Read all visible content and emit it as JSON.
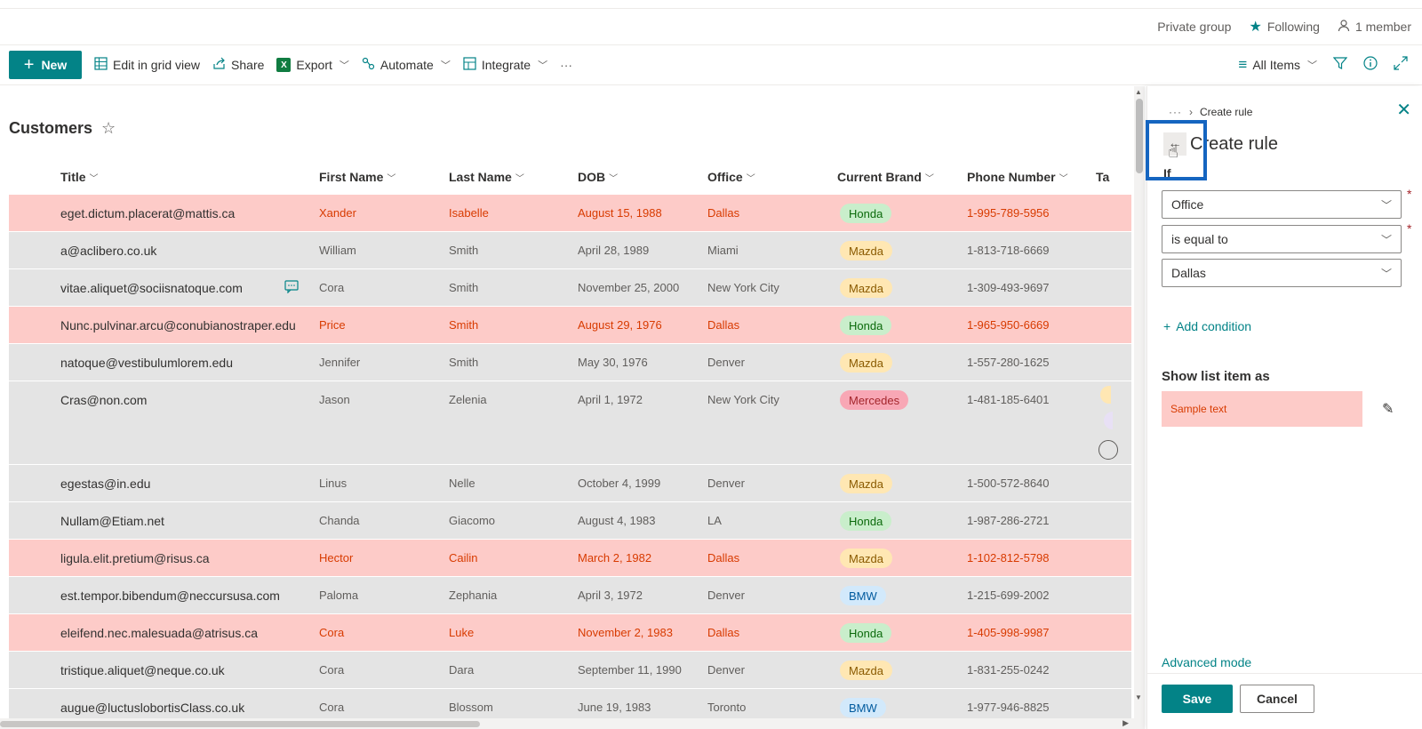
{
  "group": {
    "privacy": "Private group",
    "following": "Following",
    "members": "1 member"
  },
  "toolbar": {
    "new_label": "New",
    "edit_grid": "Edit in grid view",
    "share": "Share",
    "export": "Export",
    "automate": "Automate",
    "integrate": "Integrate",
    "more": "···",
    "view": "All Items"
  },
  "list": {
    "title": "Customers",
    "columns": [
      "Title",
      "First Name",
      "Last Name",
      "DOB",
      "Office",
      "Current Brand",
      "Phone Number",
      "Ta"
    ],
    "rows": [
      {
        "title": "eget.dictum.placerat@mattis.ca",
        "first": "Xander",
        "last": "Isabelle",
        "dob": "August 15, 1988",
        "office": "Dallas",
        "brand": "Honda",
        "phone": "1-995-789-5956",
        "highlight": true
      },
      {
        "title": "a@aclibero.co.uk",
        "first": "William",
        "last": "Smith",
        "dob": "April 28, 1989",
        "office": "Miami",
        "brand": "Mazda",
        "phone": "1-813-718-6669",
        "highlight": false
      },
      {
        "title": "vitae.aliquet@sociisnatoque.com",
        "first": "Cora",
        "last": "Smith",
        "dob": "November 25, 2000",
        "office": "New York City",
        "brand": "Mazda",
        "phone": "1-309-493-9697",
        "highlight": false
      },
      {
        "title": "Nunc.pulvinar.arcu@conubianostraper.edu",
        "first": "Price",
        "last": "Smith",
        "dob": "August 29, 1976",
        "office": "Dallas",
        "brand": "Honda",
        "phone": "1-965-950-6669",
        "highlight": true
      },
      {
        "title": "natoque@vestibulumlorem.edu",
        "first": "Jennifer",
        "last": "Smith",
        "dob": "May 30, 1976",
        "office": "Denver",
        "brand": "Mazda",
        "phone": "1-557-280-1625",
        "highlight": false
      },
      {
        "title": "Cras@non.com",
        "first": "Jason",
        "last": "Zelenia",
        "dob": "April 1, 1972",
        "office": "New York City",
        "brand": "Mercedes",
        "phone": "1-481-185-6401",
        "highlight": false
      },
      {
        "title": "egestas@in.edu",
        "first": "Linus",
        "last": "Nelle",
        "dob": "October 4, 1999",
        "office": "Denver",
        "brand": "Mazda",
        "phone": "1-500-572-8640",
        "highlight": false
      },
      {
        "title": "Nullam@Etiam.net",
        "first": "Chanda",
        "last": "Giacomo",
        "dob": "August 4, 1983",
        "office": "LA",
        "brand": "Honda",
        "phone": "1-987-286-2721",
        "highlight": false
      },
      {
        "title": "ligula.elit.pretium@risus.ca",
        "first": "Hector",
        "last": "Cailin",
        "dob": "March 2, 1982",
        "office": "Dallas",
        "brand": "Mazda",
        "phone": "1-102-812-5798",
        "highlight": true
      },
      {
        "title": "est.tempor.bibendum@neccursusa.com",
        "first": "Paloma",
        "last": "Zephania",
        "dob": "April 3, 1972",
        "office": "Denver",
        "brand": "BMW",
        "phone": "1-215-699-2002",
        "highlight": false
      },
      {
        "title": "eleifend.nec.malesuada@atrisus.ca",
        "first": "Cora",
        "last": "Luke",
        "dob": "November 2, 1983",
        "office": "Dallas",
        "brand": "Honda",
        "phone": "1-405-998-9987",
        "highlight": true
      },
      {
        "title": "tristique.aliquet@neque.co.uk",
        "first": "Cora",
        "last": "Dara",
        "dob": "September 11, 1990",
        "office": "Denver",
        "brand": "Mazda",
        "phone": "1-831-255-0242",
        "highlight": false
      },
      {
        "title": "augue@luctuslobortisClass.co.uk",
        "first": "Cora",
        "last": "Blossom",
        "dob": "June 19, 1983",
        "office": "Toronto",
        "brand": "BMW",
        "phone": "1-977-946-8825",
        "highlight": false
      }
    ]
  },
  "panel": {
    "breadcrumb_more": "···",
    "breadcrumb_current": "Create rule",
    "title": "Create rule",
    "if_label": "If",
    "field": "Office",
    "operator": "is equal to",
    "value": "Dallas",
    "add_condition": "Add condition",
    "show_as_label": "Show list item as",
    "sample_text": "Sample text",
    "advanced_mode": "Advanced mode",
    "save": "Save",
    "cancel": "Cancel"
  },
  "colors": {
    "accent": "#038387",
    "highlight_row": "#fdcbc8",
    "highlight_text": "#d83b01",
    "focus_box": "#1565c0"
  },
  "icons": [
    "people-icon",
    "star-icon",
    "grid-icon",
    "share-icon",
    "excel-icon",
    "automate-icon",
    "integrate-icon",
    "list-view-icon",
    "filter-icon",
    "info-icon",
    "expand-icon",
    "close-icon",
    "back-arrow-icon",
    "pencil-icon",
    "cursor-icon"
  ]
}
